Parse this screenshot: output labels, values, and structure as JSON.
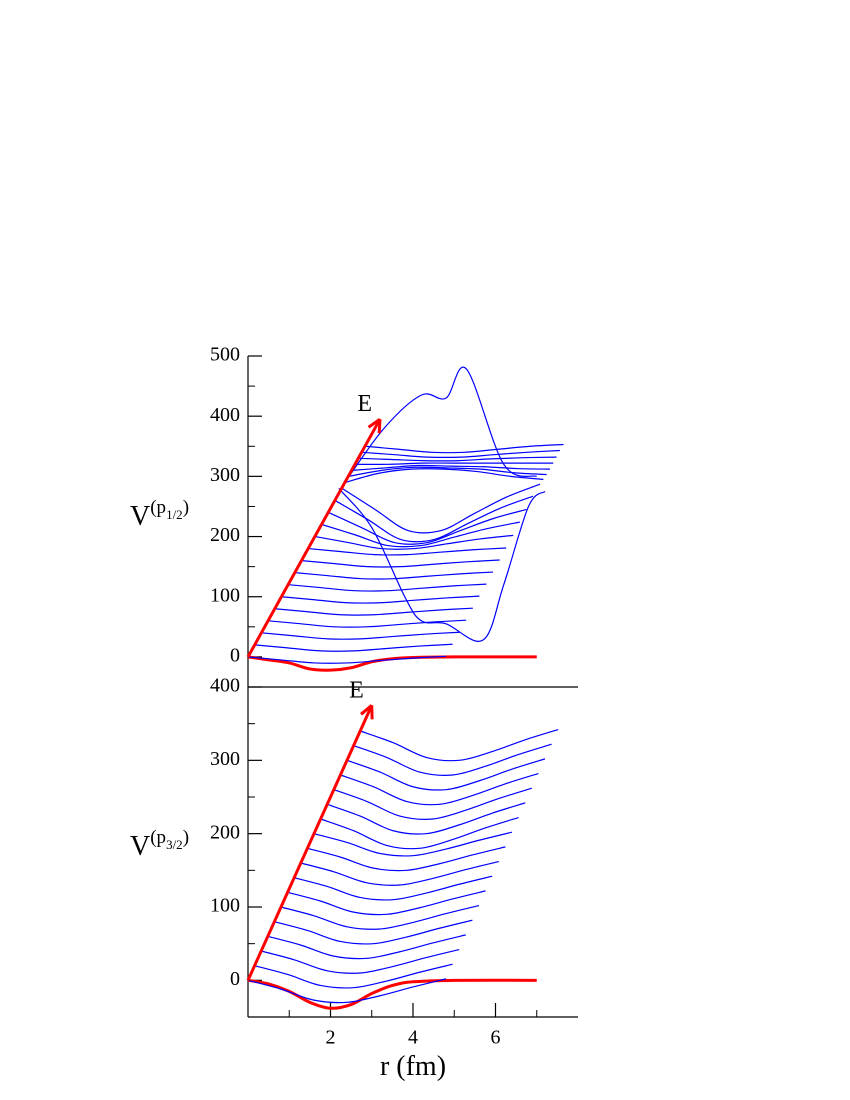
{
  "chart_data": [
    {
      "type": "line",
      "ylabel": [
        "V",
        "(p",
        "1/2",
        ")"
      ],
      "xlim": [
        0,
        8
      ],
      "ylim": [
        -50,
        500
      ],
      "yticks": [
        0,
        100,
        200,
        300,
        400,
        500
      ],
      "yminorticks": [
        50,
        150,
        250,
        350,
        450
      ],
      "annotations": [
        {
          "text": "E",
          "x": [
            0,
            3.2
          ],
          "y": [
            0,
            395
          ],
          "color": "#ff0000"
        }
      ],
      "series": [
        {
          "color": "#ff0000",
          "style": "thick",
          "x": [
            0,
            0.5,
            1,
            1.5,
            2,
            2.5,
            3,
            3.5,
            4,
            5,
            7
          ],
          "values": [
            0,
            -5,
            -10,
            -20,
            -22,
            -18,
            -8,
            -3,
            -1,
            0,
            0
          ]
        },
        {
          "color": "#0000ff",
          "x": [
            0,
            0.8,
            1.6,
            2.4,
            3.2,
            4,
            4.8
          ],
          "values": [
            0,
            -5,
            -10,
            -10,
            -6,
            -2,
            1
          ]
        },
        {
          "color": "#0000ff",
          "x": [
            0.16,
            0.96,
            1.76,
            2.56,
            3.36,
            4.16,
            4.96
          ],
          "values": [
            20,
            15,
            10,
            10,
            14,
            18,
            21
          ]
        },
        {
          "color": "#0000ff",
          "x": [
            0.33,
            1.13,
            1.93,
            2.73,
            3.53,
            4.33,
            5.13
          ],
          "values": [
            40,
            35,
            30,
            30,
            34,
            38,
            41
          ]
        },
        {
          "color": "#0000ff",
          "x": [
            0.49,
            1.29,
            2.09,
            2.89,
            3.69,
            4.49,
            5.29
          ],
          "values": [
            60,
            55,
            50,
            50,
            54,
            58,
            61
          ]
        },
        {
          "color": "#0000ff",
          "x": [
            0.65,
            1.45,
            2.25,
            3.05,
            3.85,
            4.65,
            5.45
          ],
          "values": [
            80,
            75,
            70,
            70,
            74,
            78,
            81
          ]
        },
        {
          "color": "#0000ff",
          "x": [
            0.81,
            1.61,
            2.41,
            3.21,
            4.01,
            4.81,
            5.61
          ],
          "values": [
            100,
            95,
            90,
            90,
            94,
            98,
            101
          ]
        },
        {
          "color": "#0000ff",
          "x": [
            0.98,
            1.78,
            2.58,
            3.38,
            4.18,
            4.98,
            5.78
          ],
          "values": [
            120,
            115,
            110,
            110,
            114,
            118,
            121
          ]
        },
        {
          "color": "#0000ff",
          "x": [
            1.14,
            1.94,
            2.74,
            3.54,
            4.34,
            5.14,
            5.94
          ],
          "values": [
            140,
            135,
            130,
            130,
            134,
            138,
            141
          ]
        },
        {
          "color": "#0000ff",
          "x": [
            1.3,
            2.1,
            2.9,
            3.7,
            4.5,
            5.3,
            6.1
          ],
          "values": [
            160,
            155,
            150,
            150,
            154,
            158,
            161
          ]
        },
        {
          "color": "#0000ff",
          "x": [
            1.46,
            2.26,
            3.06,
            3.86,
            4.66,
            5.46,
            6.26
          ],
          "values": [
            180,
            175,
            170,
            170,
            174,
            178,
            181
          ]
        },
        {
          "color": "#0000ff",
          "x": [
            1.63,
            2.43,
            3.23,
            4.03,
            4.83,
            5.63,
            6.43
          ],
          "values": [
            200,
            190,
            180,
            180,
            188,
            196,
            202
          ]
        },
        {
          "color": "#0000ff",
          "x": [
            1.79,
            2.59,
            3.39,
            4.19,
            4.99,
            5.79,
            6.59
          ],
          "values": [
            220,
            203,
            185,
            185,
            199,
            213,
            224
          ]
        },
        {
          "color": "#0000ff",
          "x": [
            1.95,
            2.75,
            3.55,
            4.35,
            5.15,
            5.95,
            6.75
          ],
          "values": [
            240,
            215,
            190,
            190,
            210,
            230,
            245
          ]
        },
        {
          "color": "#0000ff",
          "x": [
            2.11,
            2.91,
            3.71,
            4.51,
            5.31,
            6.11,
            6.91
          ],
          "values": [
            260,
            228,
            195,
            195,
            221,
            247,
            267
          ]
        },
        {
          "color": "#0000ff",
          "x": [
            2.28,
            3.08,
            3.88,
            4.68,
            5.48,
            6.28,
            7.08
          ],
          "values": [
            280,
            245,
            210,
            210,
            238,
            266,
            287
          ]
        },
        {
          "color": "#0000ff",
          "x": [
            2.2,
            3,
            3.8,
            4.2,
            4.8,
            5.7,
            6.2,
            6.8,
            7.2
          ],
          "values": [
            280,
            215,
            100,
            60,
            55,
            28,
            120,
            250,
            275
          ]
        },
        {
          "color": "#0000ff",
          "x": [
            2.36,
            3.16,
            3.96,
            4.76,
            5.56,
            6.36,
            7.16
          ],
          "values": [
            290,
            305,
            312,
            312,
            308,
            300,
            295
          ]
        },
        {
          "color": "#0000ff",
          "x": [
            2.35,
            3.3,
            4.2,
            4.8,
            5.3,
            6.2,
            7
          ],
          "values": [
            290,
            380,
            435,
            430,
            478,
            320,
            300
          ]
        },
        {
          "color": "#0000ff",
          "x": [
            2.44,
            3.24,
            4.04,
            4.84,
            5.64,
            6.44,
            7.24
          ],
          "values": [
            300,
            310,
            315,
            314,
            312,
            306,
            303
          ]
        },
        {
          "color": "#0000ff",
          "x": [
            2.52,
            3.32,
            4.12,
            4.92,
            5.72,
            6.52,
            7.32
          ],
          "values": [
            310,
            314,
            318,
            317,
            316,
            313,
            312
          ]
        },
        {
          "color": "#0000ff",
          "x": [
            2.6,
            3.4,
            4.2,
            5,
            5.8,
            6.6,
            7.4
          ],
          "values": [
            320,
            320,
            322,
            322,
            322,
            322,
            322
          ]
        },
        {
          "color": "#0000ff",
          "x": [
            2.68,
            3.48,
            4.28,
            5.08,
            5.88,
            6.68,
            7.48
          ],
          "values": [
            330,
            328,
            326,
            326,
            329,
            331,
            332
          ]
        },
        {
          "color": "#0000ff",
          "x": [
            2.76,
            3.56,
            4.36,
            5.16,
            5.96,
            6.76,
            7.56
          ],
          "values": [
            340,
            336,
            332,
            332,
            336,
            340,
            343
          ]
        },
        {
          "color": "#0000ff",
          "x": [
            2.85,
            3.65,
            4.45,
            5.25,
            6.05,
            6.85,
            7.65
          ],
          "values": [
            350,
            345,
            340,
            340,
            345,
            350,
            353
          ]
        }
      ]
    },
    {
      "type": "line",
      "ylabel": [
        "V",
        "(p",
        "3/2",
        ")"
      ],
      "xlabel": "r (fm)",
      "xlim": [
        0,
        8
      ],
      "xticks": [
        2,
        4,
        6
      ],
      "xminorticks": [
        1,
        3,
        5,
        7
      ],
      "ylim": [
        -50,
        400
      ],
      "yticks": [
        0,
        100,
        200,
        300,
        400
      ],
      "yminorticks": [
        -50,
        50,
        150,
        250,
        350
      ],
      "annotations": [
        {
          "text": "E",
          "x": [
            0,
            3
          ],
          "y": [
            0,
            375
          ],
          "color": "#ff0000"
        }
      ],
      "series": [
        {
          "color": "#ff0000",
          "style": "thick",
          "x": [
            0,
            0.5,
            1,
            1.5,
            2,
            2.5,
            3,
            3.5,
            4,
            5,
            7
          ],
          "values": [
            0,
            -5,
            -15,
            -30,
            -38,
            -33,
            -18,
            -7,
            -2,
            0,
            0
          ]
        },
        {
          "color": "#0000ff",
          "x": [
            0,
            0.8,
            1.6,
            2.4,
            3.2,
            4,
            4.8
          ],
          "values": [
            0,
            -12,
            -27,
            -30,
            -21,
            -9,
            2
          ]
        },
        {
          "color": "#0000ff",
          "x": [
            0.16,
            0.96,
            1.76,
            2.56,
            3.36,
            4.16,
            4.96
          ],
          "values": [
            20,
            8,
            -7,
            -10,
            -1,
            11,
            22
          ]
        },
        {
          "color": "#0000ff",
          "x": [
            0.32,
            1.12,
            1.92,
            2.72,
            3.52,
            4.32,
            5.12
          ],
          "values": [
            40,
            28,
            13,
            10,
            19,
            31,
            42
          ]
        },
        {
          "color": "#0000ff",
          "x": [
            0.48,
            1.28,
            2.08,
            2.88,
            3.68,
            4.48,
            5.28
          ],
          "values": [
            60,
            48,
            33,
            30,
            39,
            51,
            62
          ]
        },
        {
          "color": "#0000ff",
          "x": [
            0.64,
            1.44,
            2.24,
            3.04,
            3.84,
            4.64,
            5.44
          ],
          "values": [
            80,
            68,
            53,
            50,
            59,
            71,
            82
          ]
        },
        {
          "color": "#0000ff",
          "x": [
            0.8,
            1.6,
            2.4,
            3.2,
            4,
            4.8,
            5.6
          ],
          "values": [
            100,
            88,
            73,
            70,
            79,
            91,
            102
          ]
        },
        {
          "color": "#0000ff",
          "x": [
            0.96,
            1.76,
            2.56,
            3.36,
            4.16,
            4.96,
            5.76
          ],
          "values": [
            120,
            108,
            93,
            90,
            99,
            111,
            122
          ]
        },
        {
          "color": "#0000ff",
          "x": [
            1.12,
            1.92,
            2.72,
            3.52,
            4.32,
            5.12,
            5.92
          ],
          "values": [
            140,
            128,
            113,
            110,
            119,
            131,
            142
          ]
        },
        {
          "color": "#0000ff",
          "x": [
            1.28,
            2.08,
            2.88,
            3.68,
            4.48,
            5.28,
            6.08
          ],
          "values": [
            160,
            148,
            133,
            130,
            139,
            151,
            162
          ]
        },
        {
          "color": "#0000ff",
          "x": [
            1.44,
            2.24,
            3.04,
            3.84,
            4.64,
            5.44,
            6.24
          ],
          "values": [
            180,
            168,
            153,
            150,
            159,
            171,
            182
          ]
        },
        {
          "color": "#0000ff",
          "x": [
            1.6,
            2.4,
            3.2,
            4,
            4.8,
            5.6,
            6.4
          ],
          "values": [
            200,
            188,
            173,
            170,
            179,
            191,
            202
          ]
        },
        {
          "color": "#0000ff",
          "x": [
            1.76,
            2.56,
            3.36,
            4.16,
            4.96,
            5.76,
            6.56
          ],
          "values": [
            220,
            204,
            184,
            180,
            192,
            208,
            222
          ]
        },
        {
          "color": "#0000ff",
          "x": [
            1.92,
            2.72,
            3.52,
            4.32,
            5.12,
            5.92,
            6.72
          ],
          "values": [
            240,
            224,
            204,
            200,
            212,
            228,
            242
          ]
        },
        {
          "color": "#0000ff",
          "x": [
            2.08,
            2.88,
            3.68,
            4.48,
            5.28,
            6.08,
            6.88
          ],
          "values": [
            260,
            244,
            224,
            220,
            232,
            248,
            262
          ]
        },
        {
          "color": "#0000ff",
          "x": [
            2.24,
            3.04,
            3.84,
            4.64,
            5.44,
            6.24,
            7.04
          ],
          "values": [
            280,
            264,
            244,
            240,
            252,
            268,
            282
          ]
        },
        {
          "color": "#0000ff",
          "x": [
            2.4,
            3.2,
            4,
            4.8,
            5.6,
            6.4,
            7.2
          ],
          "values": [
            300,
            284,
            264,
            260,
            272,
            288,
            302
          ]
        },
        {
          "color": "#0000ff",
          "x": [
            2.56,
            3.36,
            4.16,
            4.96,
            5.76,
            6.56,
            7.36
          ],
          "values": [
            320,
            304,
            284,
            280,
            292,
            308,
            322
          ]
        },
        {
          "color": "#0000ff",
          "x": [
            2.72,
            3.52,
            4.32,
            5.12,
            5.92,
            6.72,
            7.52
          ],
          "values": [
            340,
            324,
            304,
            300,
            312,
            328,
            342
          ]
        }
      ]
    }
  ]
}
